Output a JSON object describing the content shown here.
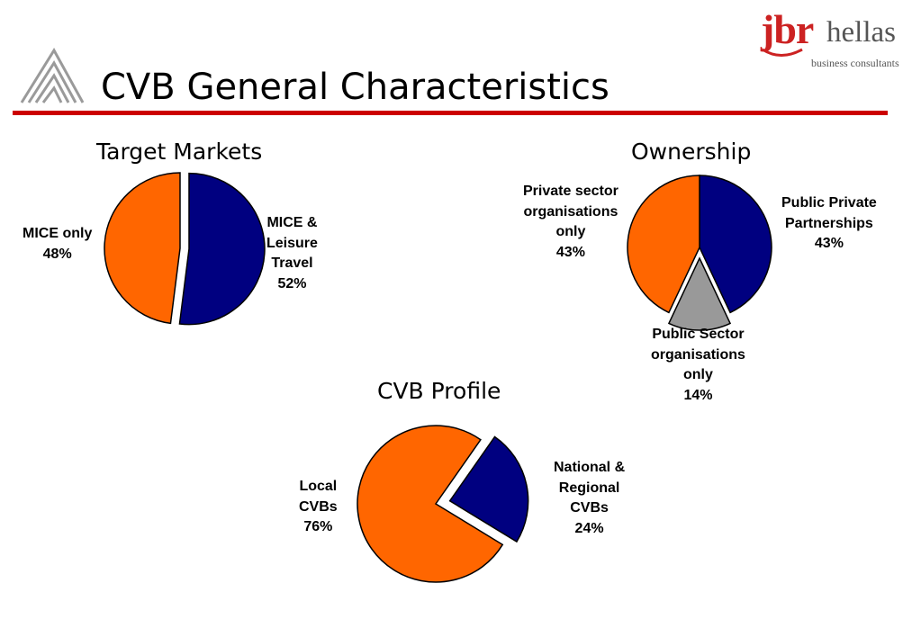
{
  "slide": {
    "title": "CVB General Characteristics"
  },
  "brand": {
    "name_primary": "jbr",
    "name_secondary": "hellas",
    "tagline": "business consultants",
    "logo_color": "#cc2222"
  },
  "colors": {
    "orange": "#ff6600",
    "navy": "#000080",
    "gray": "#999999",
    "rule": "#cc0000"
  },
  "chart_data": [
    {
      "type": "pie",
      "title": "Target Markets",
      "slices": [
        {
          "label_lines": [
            "MICE &",
            "Leisure",
            "Travel",
            "52%"
          ],
          "value": 52,
          "color": "#000080",
          "exploded": true
        },
        {
          "label_lines": [
            "MICE only",
            "48%"
          ],
          "value": 48,
          "color": "#ff6600",
          "exploded": false
        }
      ]
    },
    {
      "type": "pie",
      "title": "Ownership",
      "slices": [
        {
          "label_lines": [
            "Public Private",
            "Partnerships",
            "43%"
          ],
          "value": 43,
          "color": "#000080",
          "exploded": false
        },
        {
          "label_lines": [
            "Public Sector",
            "organisations",
            "only",
            "14%"
          ],
          "value": 14,
          "color": "#999999",
          "exploded": true
        },
        {
          "label_lines": [
            "Private sector",
            "organisations",
            "only",
            "43%"
          ],
          "value": 43,
          "color": "#ff6600",
          "exploded": false
        }
      ]
    },
    {
      "type": "pie",
      "title": "CVB Profile",
      "slices": [
        {
          "label_lines": [
            "National &",
            "Regional",
            "CVBs",
            "24%"
          ],
          "value": 24,
          "color": "#000080",
          "exploded": true
        },
        {
          "label_lines": [
            "Local",
            "CVBs",
            "76%"
          ],
          "value": 76,
          "color": "#ff6600",
          "exploded": false
        }
      ]
    }
  ]
}
